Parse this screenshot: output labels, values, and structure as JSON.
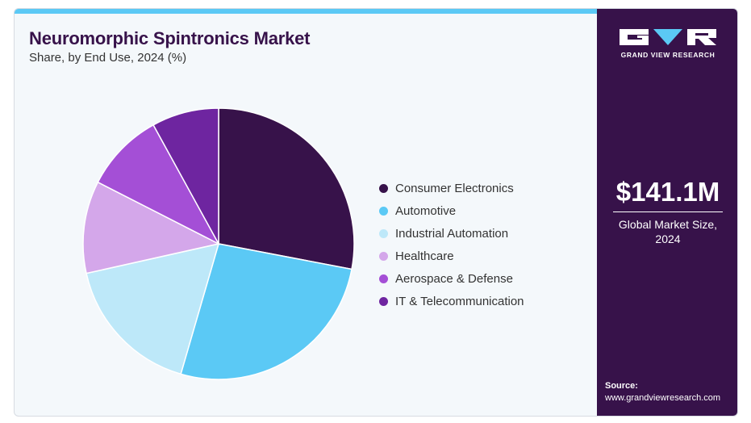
{
  "header": {
    "title": "Neuromorphic Spintronics Market",
    "subtitle": "Share, by End Use, 2024 (%)"
  },
  "chart_data": {
    "type": "pie",
    "title": "Neuromorphic Spintronics Market",
    "subtitle": "Share, by End Use, 2024 (%)",
    "unit": "%",
    "legend_position": "right",
    "slices": [
      {
        "label": "Consumer Electronics",
        "value": 28.0,
        "color": "#37124a"
      },
      {
        "label": "Automotive",
        "value": 26.5,
        "color": "#5bc9f5"
      },
      {
        "label": "Industrial Automation",
        "value": 17.0,
        "color": "#bde8f9"
      },
      {
        "label": "Healthcare",
        "value": 11.0,
        "color": "#d4a7ea"
      },
      {
        "label": "Aerospace & Defense",
        "value": 9.5,
        "color": "#a44fd6"
      },
      {
        "label": "IT & Telecommunication",
        "value": 8.0,
        "color": "#6e25a0"
      }
    ]
  },
  "side_panel": {
    "logo_text": "GRAND VIEW RESEARCH",
    "market_value": "$141.1M",
    "market_label_line1": "Global Market Size,",
    "market_label_line2": "2024",
    "source_label": "Source:",
    "source_url": "www.grandviewresearch.com"
  },
  "colors": {
    "brand_dark": "#37124a",
    "accent": "#5bc9f5",
    "background": "#f4f8fb"
  }
}
